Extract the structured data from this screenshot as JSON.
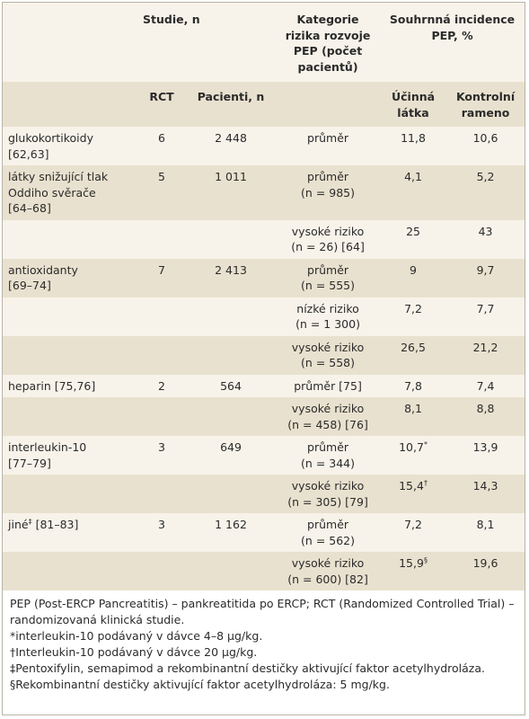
{
  "header": {
    "studie": "Studie, n",
    "kategorie": [
      "Kategorie",
      "rizika rozvoje",
      "PEP (počet",
      "pacientů)"
    ],
    "incidence": [
      "Souhrnná incidence",
      "PEP, %"
    ]
  },
  "subheader": {
    "rct": "RCT",
    "pacienti": "Pacienti, n",
    "ucinna": [
      "Účinná",
      "látka"
    ],
    "kontrolni": [
      "Kontrolní",
      "rameno"
    ]
  },
  "rows": [
    [
      [
        "glukokortikoidy",
        "[62,63]"
      ],
      [
        "6"
      ],
      [
        "2 448"
      ],
      [
        "průměr"
      ],
      [
        "11,8"
      ],
      [
        "10,6"
      ]
    ],
    [
      [
        "látky snižující tlak",
        "Oddiho svěrače",
        "[64–68]"
      ],
      [
        "5"
      ],
      [
        "1 011"
      ],
      [
        "průměr",
        "(n = 985)"
      ],
      [
        "4,1"
      ],
      [
        "5,2"
      ]
    ],
    [
      [],
      [],
      [],
      [
        "vysoké riziko",
        "(n = 26) [64]"
      ],
      [
        "25"
      ],
      [
        "43"
      ]
    ],
    [
      [
        "antioxidanty",
        "[69–74]"
      ],
      [
        "7"
      ],
      [
        "2 413"
      ],
      [
        "průměr",
        "(n = 555)"
      ],
      [
        "9"
      ],
      [
        "9,7"
      ]
    ],
    [
      [],
      [],
      [],
      [
        "nízké riziko",
        "(n = 1 300)"
      ],
      [
        "7,2"
      ],
      [
        "7,7"
      ]
    ],
    [
      [],
      [],
      [],
      [
        "vysoké riziko",
        "(n = 558)"
      ],
      [
        "26,5"
      ],
      [
        "21,2"
      ]
    ],
    [
      [
        "heparin [75,76]"
      ],
      [
        "2"
      ],
      [
        "564"
      ],
      [
        "průměr [75]"
      ],
      [
        "7,8"
      ],
      [
        "7,4"
      ]
    ],
    [
      [],
      [],
      [],
      [
        "vysoké riziko",
        "(n = 458) [76]"
      ],
      [
        "8,1"
      ],
      [
        "8,8"
      ]
    ],
    [
      [
        "interleukin-10",
        "[77–79]"
      ],
      [
        "3"
      ],
      [
        "649"
      ],
      [
        "průměr",
        "(n = 344)"
      ],
      [
        {
          "text": "10,7",
          "sup": "*"
        }
      ],
      [
        "13,9"
      ]
    ],
    [
      [],
      [],
      [],
      [
        "vysoké riziko",
        "(n = 305) [79]"
      ],
      [
        {
          "text": "15,4",
          "sup": "†"
        }
      ],
      [
        "14,3"
      ]
    ],
    [
      [
        {
          "text": "jiné",
          "sup": "‡",
          "tail": "[81–83]"
        }
      ],
      [
        "3"
      ],
      [
        "1 162"
      ],
      [
        "průměr",
        "(n = 562)"
      ],
      [
        "7,2"
      ],
      [
        "8,1"
      ]
    ],
    [
      [],
      [],
      [],
      [
        "vysoké riziko",
        "(n = 600) [82]"
      ],
      [
        {
          "text": "15,9",
          "sup": "§"
        }
      ],
      [
        "19,6"
      ]
    ]
  ],
  "notes": [
    "PEP (Post-ERCP Pancreatitis) – pankreatitida po ERCP; RCT (Randomized Controlled Trial) – randomizovaná klinická studie.",
    "*interleukin-10 podávaný v dávce 4–8 µg/kg.",
    "†Interleukin-10 podávaný v dávce 20 µg/kg.",
    "‡Pentoxifylin, semapimod a rekombinantní destičky aktivující faktor acetylhydroláza.",
    "§Rekombinantní destičky aktivující faktor acetylhydroláza: 5 mg/kg."
  ]
}
